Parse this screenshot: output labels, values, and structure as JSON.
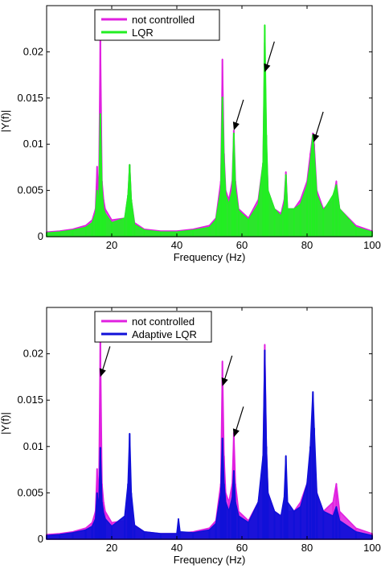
{
  "chart_data": [
    {
      "type": "line",
      "xlabel": "Frequency (Hz)",
      "ylabel": "|Y(f)|",
      "xlim": [
        0,
        100
      ],
      "ylim": [
        0,
        0.025
      ],
      "xticks": [
        "20",
        "40",
        "60",
        "80",
        "100"
      ],
      "yticks": [
        "0",
        "0.005",
        "0.01",
        "0.015",
        "0.02"
      ],
      "legend": "top-left",
      "grid": false,
      "series": [
        {
          "name": "not controlled",
          "color": "#e020e0",
          "x": [
            0,
            4,
            8,
            12,
            14,
            15,
            15.5,
            16,
            16.5,
            17,
            17.5,
            18,
            20,
            24,
            25,
            25.5,
            26,
            27,
            30,
            35,
            40,
            45,
            50,
            52,
            53.5,
            54,
            54.5,
            55,
            56,
            57,
            57.5,
            58,
            59,
            62,
            65,
            66.5,
            67,
            67.5,
            68,
            70,
            72,
            73,
            73.5,
            74,
            76,
            78,
            80,
            81,
            81.8,
            82.2,
            83,
            85,
            88,
            89,
            90,
            95,
            100
          ],
          "y": [
            0.0005,
            0.0006,
            0.0008,
            0.0012,
            0.0018,
            0.003,
            0.0076,
            0.004,
            0.0222,
            0.006,
            0.004,
            0.003,
            0.0018,
            0.002,
            0.0045,
            0.0078,
            0.004,
            0.0015,
            0.0008,
            0.0006,
            0.0006,
            0.0008,
            0.0012,
            0.002,
            0.006,
            0.0192,
            0.009,
            0.005,
            0.004,
            0.006,
            0.0115,
            0.006,
            0.003,
            0.002,
            0.004,
            0.008,
            0.021,
            0.01,
            0.005,
            0.003,
            0.0025,
            0.004,
            0.007,
            0.003,
            0.003,
            0.004,
            0.006,
            0.009,
            0.0112,
            0.01,
            0.005,
            0.003,
            0.004,
            0.006,
            0.003,
            0.0012,
            0.0006
          ]
        },
        {
          "name": "LQR",
          "color": "#22ee22",
          "x": [
            0,
            4,
            8,
            12,
            14,
            15,
            15.5,
            16,
            16.5,
            17,
            17.5,
            18,
            20,
            24,
            25,
            25.5,
            26,
            27,
            30,
            35,
            40,
            45,
            50,
            52,
            53.5,
            54,
            54.5,
            55,
            56,
            57,
            57.5,
            58,
            59,
            62,
            65,
            66.5,
            67,
            67.5,
            68,
            70,
            72,
            73,
            73.5,
            74,
            76,
            78,
            80,
            81,
            81.8,
            82.2,
            83,
            85,
            88,
            89,
            90,
            95,
            100
          ],
          "y": [
            0.0004,
            0.0005,
            0.0007,
            0.001,
            0.0015,
            0.0025,
            0.005,
            0.003,
            0.0133,
            0.005,
            0.003,
            0.0025,
            0.0015,
            0.002,
            0.0045,
            0.0078,
            0.004,
            0.0013,
            0.0007,
            0.0005,
            0.0005,
            0.0007,
            0.001,
            0.0018,
            0.005,
            0.0151,
            0.008,
            0.0045,
            0.0035,
            0.005,
            0.0112,
            0.005,
            0.0028,
            0.0018,
            0.0035,
            0.008,
            0.0229,
            0.011,
            0.005,
            0.003,
            0.0022,
            0.0035,
            0.0067,
            0.003,
            0.003,
            0.0035,
            0.0055,
            0.008,
            0.011,
            0.009,
            0.0045,
            0.0028,
            0.0045,
            0.0056,
            0.003,
            0.001,
            0.0005
          ]
        }
      ],
      "arrows": [
        [
          57.5,
          0.0115
        ],
        [
          67,
          0.0178
        ],
        [
          82,
          0.0102
        ]
      ]
    },
    {
      "type": "line",
      "xlabel": "Frequency (Hz)",
      "ylabel": "|Y(f)|",
      "xlim": [
        0,
        100
      ],
      "ylim": [
        0,
        0.025
      ],
      "xticks": [
        "20",
        "40",
        "60",
        "80",
        "100"
      ],
      "yticks": [
        "0",
        "0.005",
        "0.01",
        "0.015",
        "0.02"
      ],
      "legend": "top-left",
      "grid": false,
      "series": [
        {
          "name": "not controlled",
          "color": "#e020e0",
          "x": [
            0,
            4,
            8,
            12,
            14,
            15,
            15.5,
            16,
            16.5,
            17,
            17.5,
            18,
            20,
            24,
            25,
            25.5,
            26,
            27,
            30,
            35,
            40,
            45,
            50,
            52,
            53.5,
            54,
            54.5,
            55,
            56,
            57,
            57.5,
            58,
            59,
            62,
            65,
            66.5,
            67,
            67.5,
            68,
            70,
            72,
            73,
            73.5,
            74,
            76,
            78,
            80,
            81,
            81.8,
            82.2,
            83,
            85,
            88,
            89,
            90,
            95,
            100
          ],
          "y": [
            0.0005,
            0.0006,
            0.0008,
            0.0012,
            0.0018,
            0.003,
            0.0076,
            0.004,
            0.0222,
            0.006,
            0.004,
            0.003,
            0.0018,
            0.002,
            0.0045,
            0.0078,
            0.004,
            0.0015,
            0.0008,
            0.0006,
            0.0006,
            0.0008,
            0.0012,
            0.002,
            0.006,
            0.0192,
            0.009,
            0.005,
            0.004,
            0.006,
            0.0115,
            0.006,
            0.003,
            0.002,
            0.004,
            0.008,
            0.021,
            0.01,
            0.005,
            0.003,
            0.0025,
            0.004,
            0.007,
            0.003,
            0.003,
            0.004,
            0.006,
            0.009,
            0.0112,
            0.01,
            0.005,
            0.003,
            0.004,
            0.006,
            0.003,
            0.0012,
            0.0006
          ]
        },
        {
          "name": "Adaptive LQR",
          "color": "#1010d8",
          "x": [
            0,
            4,
            8,
            12,
            14,
            15,
            15.5,
            16,
            16.5,
            17,
            17.5,
            18,
            20,
            24,
            25,
            25.5,
            26,
            27,
            30,
            35,
            40,
            40.5,
            41,
            45,
            50,
            52,
            53.5,
            54,
            54.5,
            55,
            56,
            57,
            57.5,
            58,
            59,
            62,
            65,
            66.5,
            67,
            67.5,
            68,
            70,
            72,
            73,
            73.5,
            74,
            76,
            78,
            80,
            81,
            81.8,
            82.2,
            83,
            85,
            88,
            89,
            90,
            95,
            100
          ],
          "y": [
            0.0004,
            0.0005,
            0.0007,
            0.001,
            0.0014,
            0.0022,
            0.005,
            0.003,
            0.0099,
            0.004,
            0.0028,
            0.0022,
            0.0014,
            0.0025,
            0.006,
            0.0114,
            0.005,
            0.0015,
            0.0008,
            0.0006,
            0.0006,
            0.0022,
            0.0008,
            0.0007,
            0.001,
            0.0017,
            0.005,
            0.0109,
            0.006,
            0.004,
            0.003,
            0.0045,
            0.0074,
            0.004,
            0.0025,
            0.0018,
            0.004,
            0.009,
            0.0204,
            0.01,
            0.005,
            0.003,
            0.0025,
            0.0045,
            0.009,
            0.004,
            0.003,
            0.0035,
            0.006,
            0.01,
            0.0159,
            0.012,
            0.005,
            0.003,
            0.0025,
            0.0035,
            0.002,
            0.0008,
            0.0004
          ]
        }
      ],
      "arrows": [
        [
          16.5,
          0.0175
        ],
        [
          54,
          0.0165
        ],
        [
          57.5,
          0.011
        ]
      ]
    }
  ]
}
